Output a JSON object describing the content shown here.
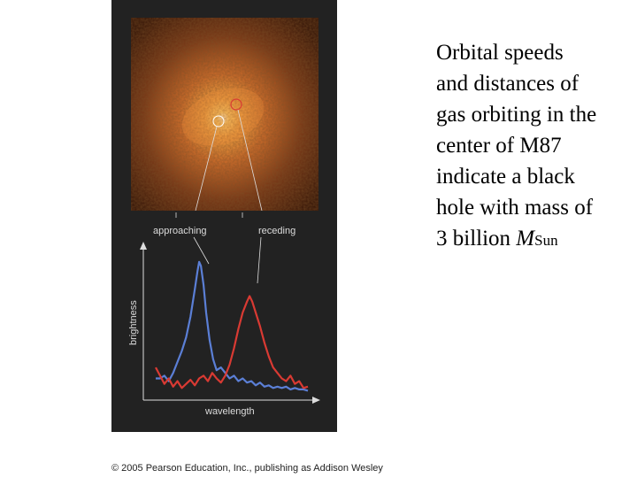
{
  "caption": {
    "line1": "Orbital speeds",
    "line2": "and distances of",
    "line3": "gas orbiting in the",
    "line4": "center of M87",
    "line5": "indicate a black",
    "line6": "hole with mass of",
    "line7_prefix": "3 billion",
    "line7_symbol": "M",
    "line7_subscript": "Sun"
  },
  "figure": {
    "label_approaching": "approaching",
    "label_receding": "receding",
    "ylabel": "brightness",
    "xlabel": "wavelength"
  },
  "copyright": "© 2005 Pearson Education, Inc., publishing as Addison Wesley",
  "chart_data": {
    "type": "line",
    "xlabel": "wavelength",
    "ylabel": "brightness",
    "grid": false,
    "series": [
      {
        "name": "approaching",
        "color": "#5b7fd6",
        "points": [
          [
            0,
            0.1
          ],
          [
            5,
            0.1
          ],
          [
            10,
            0.12
          ],
          [
            15,
            0.08
          ],
          [
            20,
            0.14
          ],
          [
            25,
            0.22
          ],
          [
            30,
            0.3
          ],
          [
            35,
            0.4
          ],
          [
            40,
            0.55
          ],
          [
            45,
            0.75
          ],
          [
            48,
            0.88
          ],
          [
            50,
            0.95
          ],
          [
            52,
            0.92
          ],
          [
            55,
            0.78
          ],
          [
            58,
            0.58
          ],
          [
            62,
            0.38
          ],
          [
            66,
            0.24
          ],
          [
            70,
            0.16
          ],
          [
            75,
            0.18
          ],
          [
            80,
            0.14
          ],
          [
            85,
            0.1
          ],
          [
            90,
            0.12
          ],
          [
            95,
            0.08
          ],
          [
            100,
            0.1
          ],
          [
            105,
            0.07
          ],
          [
            110,
            0.08
          ],
          [
            115,
            0.05
          ],
          [
            120,
            0.07
          ],
          [
            125,
            0.04
          ],
          [
            130,
            0.05
          ],
          [
            135,
            0.03
          ],
          [
            140,
            0.04
          ],
          [
            145,
            0.03
          ],
          [
            150,
            0.04
          ],
          [
            155,
            0.02
          ],
          [
            160,
            0.03
          ],
          [
            165,
            0.02
          ],
          [
            170,
            0.02
          ],
          [
            175,
            0.01
          ]
        ]
      },
      {
        "name": "receding",
        "color": "#d93a33",
        "points": [
          [
            0,
            0.18
          ],
          [
            5,
            0.12
          ],
          [
            10,
            0.06
          ],
          [
            15,
            0.1
          ],
          [
            20,
            0.04
          ],
          [
            25,
            0.08
          ],
          [
            30,
            0.03
          ],
          [
            35,
            0.06
          ],
          [
            40,
            0.09
          ],
          [
            45,
            0.05
          ],
          [
            50,
            0.1
          ],
          [
            55,
            0.12
          ],
          [
            60,
            0.08
          ],
          [
            65,
            0.14
          ],
          [
            70,
            0.1
          ],
          [
            75,
            0.07
          ],
          [
            80,
            0.12
          ],
          [
            85,
            0.2
          ],
          [
            90,
            0.32
          ],
          [
            95,
            0.46
          ],
          [
            100,
            0.58
          ],
          [
            105,
            0.66
          ],
          [
            108,
            0.7
          ],
          [
            111,
            0.66
          ],
          [
            115,
            0.58
          ],
          [
            120,
            0.48
          ],
          [
            125,
            0.36
          ],
          [
            130,
            0.26
          ],
          [
            135,
            0.18
          ],
          [
            140,
            0.14
          ],
          [
            145,
            0.1
          ],
          [
            150,
            0.08
          ],
          [
            155,
            0.12
          ],
          [
            160,
            0.06
          ],
          [
            165,
            0.08
          ],
          [
            170,
            0.03
          ],
          [
            175,
            0.04
          ]
        ]
      }
    ]
  }
}
